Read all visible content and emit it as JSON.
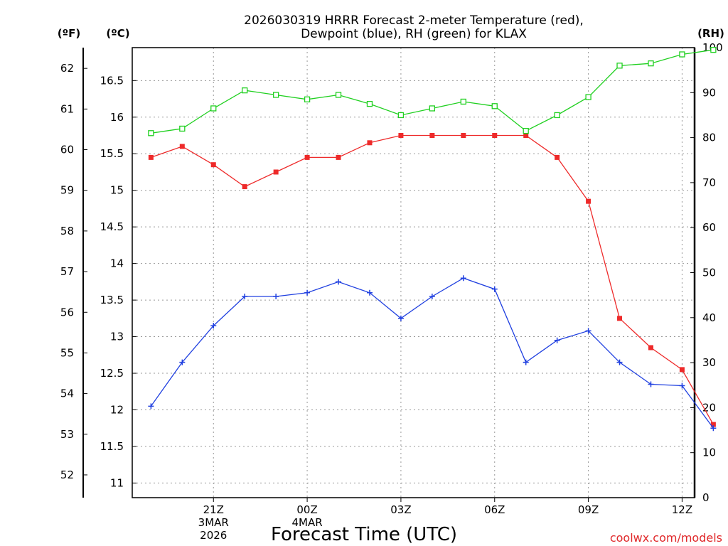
{
  "chart_data": {
    "type": "line",
    "title_lines": [
      "2026030319 HRRR Forecast 2-meter Temperature (red),",
      "Dewpoint (blue), RH (green) for KLAX"
    ],
    "xlabel": "Forecast Time (UTC)",
    "watermark": "coolwx.com/models",
    "unit_labels": {
      "fahrenheit": "(ºF)",
      "celsius": "(ºC)",
      "rh": "(RH)"
    },
    "x_hours": [
      0,
      1,
      2,
      3,
      4,
      5,
      6,
      7,
      8,
      9,
      10,
      11,
      12,
      13,
      14,
      15,
      16,
      17,
      18
    ],
    "x_tick_labels": [
      {
        "hour": 2,
        "text": "21Z"
      },
      {
        "hour": 5,
        "text": "00Z"
      },
      {
        "hour": 8,
        "text": "03Z"
      },
      {
        "hour": 11,
        "text": "06Z"
      },
      {
        "hour": 14,
        "text": "09Z"
      },
      {
        "hour": 17,
        "text": "12Z"
      }
    ],
    "date_labels": [
      {
        "hour": 2,
        "line1": "3MAR",
        "line2": "2026"
      },
      {
        "hour": 5,
        "line1": "4MAR",
        "line2": ""
      }
    ],
    "axes": {
      "celsius": {
        "range": [
          10.8,
          16.95
        ],
        "ticks": [
          11,
          11.5,
          12,
          12.5,
          13,
          13.5,
          14,
          14.5,
          15,
          15.5,
          16,
          16.5
        ]
      },
      "fahrenheit": {
        "ticks": [
          52,
          53,
          54,
          55,
          56,
          57,
          58,
          59,
          60,
          61,
          62
        ]
      },
      "rh": {
        "range": [
          0,
          100
        ],
        "ticks": [
          0,
          10,
          20,
          30,
          40,
          50,
          60,
          70,
          80,
          90,
          100
        ]
      },
      "x_range": [
        -0.6,
        17.4
      ]
    },
    "grid": true,
    "series": [
      {
        "name": "Temperature",
        "unit": "°C",
        "axis": "celsius",
        "color": "#ee2a2a",
        "marker": "filled-square",
        "values": [
          15.45,
          15.6,
          15.35,
          15.05,
          15.25,
          15.45,
          15.45,
          15.65,
          15.75,
          15.75,
          15.75,
          15.75,
          15.75,
          15.45,
          14.85,
          13.25,
          12.85,
          12.55,
          11.8
        ]
      },
      {
        "name": "Dewpoint",
        "unit": "°C",
        "axis": "celsius",
        "color": "#2040e0",
        "marker": "plus",
        "values": [
          12.05,
          12.65,
          13.15,
          13.55,
          13.55,
          13.6,
          13.75,
          13.6,
          13.25,
          13.55,
          13.8,
          13.65,
          12.65,
          12.95,
          13.08,
          12.65,
          12.35,
          12.33,
          11.75
        ]
      },
      {
        "name": "RH",
        "unit": "%",
        "axis": "rh",
        "color": "#20d020",
        "marker": "open-square",
        "values": [
          81,
          82,
          86.5,
          90.5,
          89.5,
          88.5,
          89.5,
          87.5,
          85,
          86.5,
          88,
          87,
          81.5,
          85,
          89,
          96,
          96.5,
          98.5,
          99.5
        ]
      }
    ]
  }
}
